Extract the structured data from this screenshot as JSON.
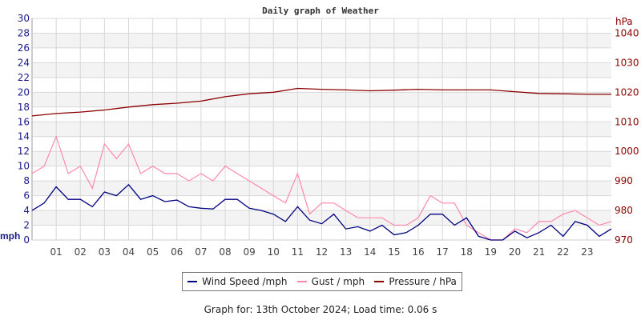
{
  "chart_data": {
    "type": "line",
    "title": "Daily graph of Weather",
    "ylabel_left": "mph",
    "ylabel_right": "hPa",
    "ylim_left": [
      0,
      30
    ],
    "ylim_right": [
      970,
      1045
    ],
    "yticks_left": [
      0,
      2,
      4,
      6,
      8,
      10,
      12,
      14,
      16,
      18,
      20,
      22,
      24,
      26,
      28,
      30
    ],
    "yticks_right": [
      970,
      980,
      990,
      1000,
      1010,
      1020,
      1030,
      1040
    ],
    "xlim": [
      0,
      24
    ],
    "xticks": [
      "01",
      "02",
      "03",
      "04",
      "05",
      "06",
      "07",
      "08",
      "09",
      "10",
      "11",
      "12",
      "13",
      "14",
      "15",
      "16",
      "17",
      "18",
      "19",
      "20",
      "21",
      "22",
      "23"
    ],
    "grid": true,
    "legend_placement": "bottom",
    "series": [
      {
        "name": "Wind Speed /mph",
        "color": "#000080",
        "axis": "left",
        "x": [
          0,
          0.5,
          1,
          1.5,
          2,
          2.5,
          3,
          3.5,
          4,
          4.5,
          5,
          5.5,
          6,
          6.5,
          7,
          7.5,
          8,
          8.5,
          9,
          9.5,
          10,
          10.5,
          11,
          11.5,
          12,
          12.5,
          13,
          13.5,
          14,
          14.5,
          15,
          15.5,
          16,
          16.5,
          17,
          17.5,
          18,
          18.5,
          19,
          19.5,
          20,
          20.5,
          21,
          21.5,
          22,
          22.5,
          23,
          23.5,
          24
        ],
        "values": [
          4,
          5,
          7.2,
          5.5,
          5.5,
          4.5,
          6.5,
          6,
          7.5,
          5.5,
          6,
          5.2,
          5.4,
          4.5,
          4.3,
          4.2,
          5.5,
          5.5,
          4.3,
          4,
          3.5,
          2.5,
          4.5,
          2.7,
          2.2,
          3.5,
          1.5,
          1.8,
          1.2,
          2,
          0.7,
          1,
          2,
          3.5,
          3.5,
          2,
          3,
          0.5,
          0,
          0,
          1.2,
          0.3,
          1,
          2,
          0.5,
          2.5,
          2,
          0.5,
          1.5
        ]
      },
      {
        "name": "Gust / mph",
        "color": "#ff88aa",
        "axis": "left",
        "x": [
          0,
          0.5,
          1,
          1.5,
          2,
          2.5,
          3,
          3.5,
          4,
          4.5,
          5,
          5.5,
          6,
          6.5,
          7,
          7.5,
          8,
          8.5,
          9,
          9.5,
          10,
          10.5,
          11,
          11.5,
          12,
          12.5,
          13,
          13.5,
          14,
          14.5,
          15,
          15.5,
          16,
          16.5,
          17,
          17.5,
          18,
          18.5,
          19,
          19.5,
          20,
          20.5,
          21,
          21.5,
          22,
          22.5,
          23,
          23.5,
          24
        ],
        "values": [
          9,
          10,
          14,
          9,
          10,
          7,
          13,
          11,
          13,
          9,
          10,
          9,
          9,
          8,
          9,
          8,
          10,
          9,
          8,
          7,
          6,
          5,
          9,
          3.5,
          5,
          5,
          4,
          3,
          3,
          3,
          2,
          2,
          3,
          6,
          5,
          5,
          2,
          1,
          0,
          0,
          1.5,
          1,
          2.5,
          2.5,
          3.5,
          4,
          3,
          2,
          2.5
        ]
      },
      {
        "name": "Pressure / hPa",
        "color": "#8b0000",
        "axis": "right",
        "x": [
          0,
          1,
          2,
          3,
          4,
          5,
          6,
          7,
          8,
          9,
          10,
          11,
          12,
          13,
          14,
          15,
          16,
          17,
          18,
          19,
          20,
          21,
          22,
          23,
          24
        ],
        "values": [
          1012,
          1012.8,
          1013.3,
          1014,
          1015,
          1015.8,
          1016.3,
          1017,
          1018.5,
          1019.5,
          1020,
          1021.3,
          1021,
          1020.8,
          1020.5,
          1020.7,
          1021,
          1020.8,
          1020.8,
          1020.8,
          1020.2,
          1019.6,
          1019.5,
          1019.3,
          1019.3
        ]
      }
    ]
  },
  "footer": "Graph for: 13th October 2024; Load time: 0.06 s"
}
